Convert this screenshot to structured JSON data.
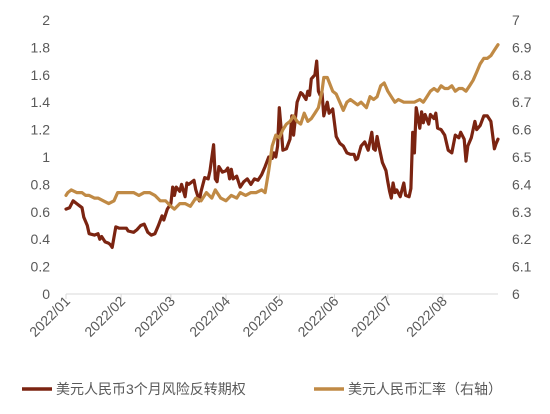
{
  "chart_data": {
    "type": "line",
    "title": "",
    "xlabel": "",
    "ylabel": "",
    "y_left": {
      "lim": [
        0,
        2
      ],
      "ticks": [
        "0",
        "0.2",
        "0.4",
        "0.6",
        "0.8",
        "1",
        "1.2",
        "1.4",
        "1.6",
        "1.8",
        "2"
      ]
    },
    "y_right": {
      "lim": [
        6,
        7
      ],
      "ticks": [
        "6",
        "6.1",
        "6.2",
        "6.3",
        "6.4",
        "6.5",
        "6.6",
        "6.7",
        "6.8",
        "6.9",
        "7"
      ]
    },
    "x_ticks": [
      "2022/01",
      "2022/02",
      "2022/03",
      "2022/04",
      "2022/05",
      "2022/06",
      "2022/07",
      "2022/08"
    ],
    "grid": false,
    "legend_position": "bottom",
    "series": [
      {
        "name": "美元人民币3个月风险反转期权",
        "axis": "left",
        "color": "#7b2411",
        "points": [
          [
            "2022-01-01",
            0.62
          ],
          [
            "2022-01-03",
            0.63
          ],
          [
            "2022-01-05",
            0.68
          ],
          [
            "2022-01-07",
            0.66
          ],
          [
            "2022-01-09",
            0.64
          ],
          [
            "2022-01-10",
            0.63
          ],
          [
            "2022-01-11",
            0.56
          ],
          [
            "2022-01-13",
            0.5
          ],
          [
            "2022-01-14",
            0.44
          ],
          [
            "2022-01-17",
            0.43
          ],
          [
            "2022-01-19",
            0.44
          ],
          [
            "2022-01-20",
            0.4
          ],
          [
            "2022-01-21",
            0.42
          ],
          [
            "2022-01-23",
            0.38
          ],
          [
            "2022-01-25",
            0.37
          ],
          [
            "2022-01-26",
            0.36
          ],
          [
            "2022-01-27",
            0.34
          ],
          [
            "2022-01-29",
            0.49
          ],
          [
            "2022-01-31",
            0.48
          ],
          [
            "2022-02-04",
            0.48
          ],
          [
            "2022-02-05",
            0.46
          ],
          [
            "2022-02-08",
            0.45
          ],
          [
            "2022-02-10",
            0.47
          ],
          [
            "2022-02-12",
            0.5
          ],
          [
            "2022-02-14",
            0.51
          ],
          [
            "2022-02-16",
            0.45
          ],
          [
            "2022-02-18",
            0.43
          ],
          [
            "2022-02-20",
            0.44
          ],
          [
            "2022-02-22",
            0.5
          ],
          [
            "2022-02-24",
            0.57
          ],
          [
            "2022-02-25",
            0.54
          ],
          [
            "2022-02-27",
            0.62
          ],
          [
            "2022-03-01",
            0.66
          ],
          [
            "2022-03-02",
            0.78
          ],
          [
            "2022-03-03",
            0.72
          ],
          [
            "2022-03-04",
            0.78
          ],
          [
            "2022-03-06",
            0.75
          ],
          [
            "2022-03-07",
            0.8
          ],
          [
            "2022-03-09",
            0.71
          ],
          [
            "2022-03-10",
            0.81
          ],
          [
            "2022-03-11",
            0.8
          ],
          [
            "2022-03-14",
            0.83
          ],
          [
            "2022-03-15",
            0.76
          ],
          [
            "2022-03-17",
            0.68
          ],
          [
            "2022-03-18",
            0.75
          ],
          [
            "2022-03-20",
            0.85
          ],
          [
            "2022-03-22",
            0.84
          ],
          [
            "2022-03-23",
            0.9
          ],
          [
            "2022-03-25",
            1.09
          ],
          [
            "2022-03-26",
            0.84
          ],
          [
            "2022-03-27",
            0.82
          ],
          [
            "2022-03-28",
            0.93
          ],
          [
            "2022-03-30",
            0.89
          ],
          [
            "2022-04-01",
            0.9
          ],
          [
            "2022-04-02",
            0.92
          ],
          [
            "2022-04-03",
            0.84
          ],
          [
            "2022-04-04",
            0.91
          ],
          [
            "2022-04-05",
            0.84
          ],
          [
            "2022-04-07",
            0.86
          ],
          [
            "2022-04-09",
            0.78
          ],
          [
            "2022-04-11",
            0.82
          ],
          [
            "2022-04-13",
            0.84
          ],
          [
            "2022-04-15",
            0.8
          ],
          [
            "2022-04-17",
            0.84
          ],
          [
            "2022-04-19",
            0.83
          ],
          [
            "2022-04-21",
            0.87
          ],
          [
            "2022-04-23",
            0.93
          ],
          [
            "2022-04-25",
            1.0
          ],
          [
            "2022-04-27",
            0.99
          ],
          [
            "2022-04-28",
            1.03
          ],
          [
            "2022-04-29",
            1.0
          ],
          [
            "2022-04-30",
            1.08
          ],
          [
            "2022-05-01",
            1.36
          ],
          [
            "2022-05-02",
            1.21
          ],
          [
            "2022-05-03",
            1.05
          ],
          [
            "2022-05-05",
            1.06
          ],
          [
            "2022-05-07",
            1.13
          ],
          [
            "2022-05-08",
            1.3
          ],
          [
            "2022-05-09",
            1.16
          ],
          [
            "2022-05-11",
            1.4
          ],
          [
            "2022-05-13",
            1.47
          ],
          [
            "2022-05-14",
            1.46
          ],
          [
            "2022-05-16",
            1.42
          ],
          [
            "2022-05-17",
            1.48
          ],
          [
            "2022-05-18",
            1.45
          ],
          [
            "2022-05-19",
            1.57
          ],
          [
            "2022-05-21",
            1.6
          ],
          [
            "2022-05-22",
            1.7
          ],
          [
            "2022-05-23",
            1.48
          ],
          [
            "2022-05-24",
            1.45
          ],
          [
            "2022-05-25",
            1.47
          ],
          [
            "2022-05-26",
            1.3
          ],
          [
            "2022-05-28",
            1.4
          ],
          [
            "2022-05-29",
            1.32
          ],
          [
            "2022-05-31",
            1.35
          ],
          [
            "2022-06-02",
            1.15
          ],
          [
            "2022-06-04",
            1.1
          ],
          [
            "2022-06-06",
            1.08
          ],
          [
            "2022-06-08",
            1.03
          ],
          [
            "2022-06-10",
            1.02
          ],
          [
            "2022-06-12",
            1.02
          ],
          [
            "2022-06-13",
            0.98
          ],
          [
            "2022-06-14",
            0.99
          ],
          [
            "2022-06-16",
            1.08
          ],
          [
            "2022-06-18",
            1.11
          ],
          [
            "2022-06-20",
            1.05
          ],
          [
            "2022-06-22",
            1.18
          ],
          [
            "2022-06-23",
            1.06
          ],
          [
            "2022-06-24",
            1.05
          ],
          [
            "2022-06-25",
            1.15
          ],
          [
            "2022-06-26",
            1.08
          ],
          [
            "2022-06-28",
            0.96
          ],
          [
            "2022-06-30",
            0.9
          ],
          [
            "2022-07-01",
            0.82
          ],
          [
            "2022-07-02",
            0.75
          ],
          [
            "2022-07-03",
            0.7
          ],
          [
            "2022-07-04",
            0.81
          ],
          [
            "2022-07-05",
            0.74
          ],
          [
            "2022-07-06",
            0.76
          ],
          [
            "2022-07-08",
            0.71
          ],
          [
            "2022-07-10",
            0.81
          ],
          [
            "2022-07-11",
            0.72
          ],
          [
            "2022-07-13",
            0.71
          ],
          [
            "2022-07-14",
            0.77
          ],
          [
            "2022-07-15",
            1.18
          ],
          [
            "2022-07-16",
            1.03
          ],
          [
            "2022-07-17",
            1.36
          ],
          [
            "2022-07-19",
            1.21
          ],
          [
            "2022-07-20",
            1.33
          ],
          [
            "2022-07-21",
            1.25
          ],
          [
            "2022-07-22",
            1.31
          ],
          [
            "2022-07-24",
            1.24
          ],
          [
            "2022-07-25",
            1.31
          ],
          [
            "2022-07-27",
            1.28
          ],
          [
            "2022-07-28",
            1.32
          ],
          [
            "2022-07-29",
            1.21
          ],
          [
            "2022-07-31",
            1.2
          ],
          [
            "2022-08-02",
            1.16
          ],
          [
            "2022-08-04",
            1.05
          ],
          [
            "2022-08-06",
            1.03
          ],
          [
            "2022-08-08",
            1.16
          ],
          [
            "2022-08-10",
            1.14
          ],
          [
            "2022-08-11",
            1.18
          ],
          [
            "2022-08-13",
            1.13
          ],
          [
            "2022-08-14",
            0.97
          ],
          [
            "2022-08-15",
            1.08
          ],
          [
            "2022-08-17",
            1.14
          ],
          [
            "2022-08-19",
            1.26
          ],
          [
            "2022-08-20",
            1.2
          ],
          [
            "2022-08-22",
            1.23
          ],
          [
            "2022-08-24",
            1.3
          ],
          [
            "2022-08-26",
            1.3
          ],
          [
            "2022-08-28",
            1.26
          ],
          [
            "2022-08-30",
            1.06
          ],
          [
            "2022-08-31",
            1.1
          ],
          [
            "2022-09-01",
            1.13
          ]
        ]
      },
      {
        "name": "美元人民币汇率（右轴）",
        "axis": "right",
        "color": "#c08a45",
        "points": [
          [
            "2022-01-01",
            6.36
          ],
          [
            "2022-01-02",
            6.37
          ],
          [
            "2022-01-04",
            6.38
          ],
          [
            "2022-01-07",
            6.37
          ],
          [
            "2022-01-10",
            6.37
          ],
          [
            "2022-01-12",
            6.36
          ],
          [
            "2022-01-14",
            6.36
          ],
          [
            "2022-01-17",
            6.35
          ],
          [
            "2022-01-19",
            6.35
          ],
          [
            "2022-01-22",
            6.34
          ],
          [
            "2022-01-25",
            6.33
          ],
          [
            "2022-01-28",
            6.34
          ],
          [
            "2022-01-30",
            6.37
          ],
          [
            "2022-02-02",
            6.37
          ],
          [
            "2022-02-05",
            6.37
          ],
          [
            "2022-02-08",
            6.37
          ],
          [
            "2022-02-11",
            6.36
          ],
          [
            "2022-02-14",
            6.37
          ],
          [
            "2022-02-17",
            6.37
          ],
          [
            "2022-02-20",
            6.36
          ],
          [
            "2022-02-23",
            6.34
          ],
          [
            "2022-02-26",
            6.34
          ],
          [
            "2022-03-01",
            6.32
          ],
          [
            "2022-03-03",
            6.31
          ],
          [
            "2022-03-06",
            6.33
          ],
          [
            "2022-03-09",
            6.33
          ],
          [
            "2022-03-12",
            6.32
          ],
          [
            "2022-03-15",
            6.35
          ],
          [
            "2022-03-18",
            6.34
          ],
          [
            "2022-03-21",
            6.37
          ],
          [
            "2022-03-24",
            6.35
          ],
          [
            "2022-03-26",
            6.38
          ],
          [
            "2022-03-29",
            6.35
          ],
          [
            "2022-04-01",
            6.34
          ],
          [
            "2022-04-04",
            6.36
          ],
          [
            "2022-04-07",
            6.35
          ],
          [
            "2022-04-09",
            6.37
          ],
          [
            "2022-04-12",
            6.36
          ],
          [
            "2022-04-15",
            6.37
          ],
          [
            "2022-04-18",
            6.37
          ],
          [
            "2022-04-21",
            6.38
          ],
          [
            "2022-04-23",
            6.37
          ],
          [
            "2022-04-25",
            6.45
          ],
          [
            "2022-04-27",
            6.54
          ],
          [
            "2022-04-29",
            6.58
          ],
          [
            "2022-05-01",
            6.57
          ],
          [
            "2022-05-03",
            6.6
          ],
          [
            "2022-05-05",
            6.62
          ],
          [
            "2022-05-07",
            6.63
          ],
          [
            "2022-05-09",
            6.65
          ],
          [
            "2022-05-11",
            6.63
          ],
          [
            "2022-05-13",
            6.62
          ],
          [
            "2022-05-15",
            6.66
          ],
          [
            "2022-05-17",
            6.63
          ],
          [
            "2022-05-19",
            6.64
          ],
          [
            "2022-05-21",
            6.66
          ],
          [
            "2022-05-23",
            6.68
          ],
          [
            "2022-05-25",
            6.74
          ],
          [
            "2022-05-26",
            6.79
          ],
          [
            "2022-05-28",
            6.79
          ],
          [
            "2022-05-31",
            6.74
          ],
          [
            "2022-06-02",
            6.73
          ],
          [
            "2022-06-04",
            6.7
          ],
          [
            "2022-06-06",
            6.67
          ],
          [
            "2022-06-08",
            6.7
          ],
          [
            "2022-06-10",
            6.71
          ],
          [
            "2022-06-12",
            6.7
          ],
          [
            "2022-06-14",
            6.69
          ],
          [
            "2022-06-16",
            6.7
          ],
          [
            "2022-06-19",
            6.68
          ],
          [
            "2022-06-21",
            6.72
          ],
          [
            "2022-06-23",
            6.71
          ],
          [
            "2022-06-25",
            6.72
          ],
          [
            "2022-06-27",
            6.76
          ],
          [
            "2022-06-29",
            6.77
          ],
          [
            "2022-07-01",
            6.74
          ],
          [
            "2022-07-03",
            6.72
          ],
          [
            "2022-07-05",
            6.7
          ],
          [
            "2022-07-07",
            6.71
          ],
          [
            "2022-07-10",
            6.7
          ],
          [
            "2022-07-13",
            6.7
          ],
          [
            "2022-07-16",
            6.7
          ],
          [
            "2022-07-19",
            6.71
          ],
          [
            "2022-07-21",
            6.7
          ],
          [
            "2022-07-23",
            6.72
          ],
          [
            "2022-07-25",
            6.74
          ],
          [
            "2022-07-27",
            6.75
          ],
          [
            "2022-07-29",
            6.74
          ],
          [
            "2022-07-31",
            6.76
          ],
          [
            "2022-08-02",
            6.75
          ],
          [
            "2022-08-04",
            6.75
          ],
          [
            "2022-08-06",
            6.76
          ],
          [
            "2022-08-08",
            6.74
          ],
          [
            "2022-08-10",
            6.75
          ],
          [
            "2022-08-12",
            6.75
          ],
          [
            "2022-08-14",
            6.74
          ],
          [
            "2022-08-16",
            6.76
          ],
          [
            "2022-08-18",
            6.78
          ],
          [
            "2022-08-20",
            6.81
          ],
          [
            "2022-08-22",
            6.84
          ],
          [
            "2022-08-24",
            6.86
          ],
          [
            "2022-08-26",
            6.86
          ],
          [
            "2022-08-28",
            6.87
          ],
          [
            "2022-08-30",
            6.89
          ],
          [
            "2022-09-01",
            6.91
          ]
        ]
      }
    ]
  }
}
